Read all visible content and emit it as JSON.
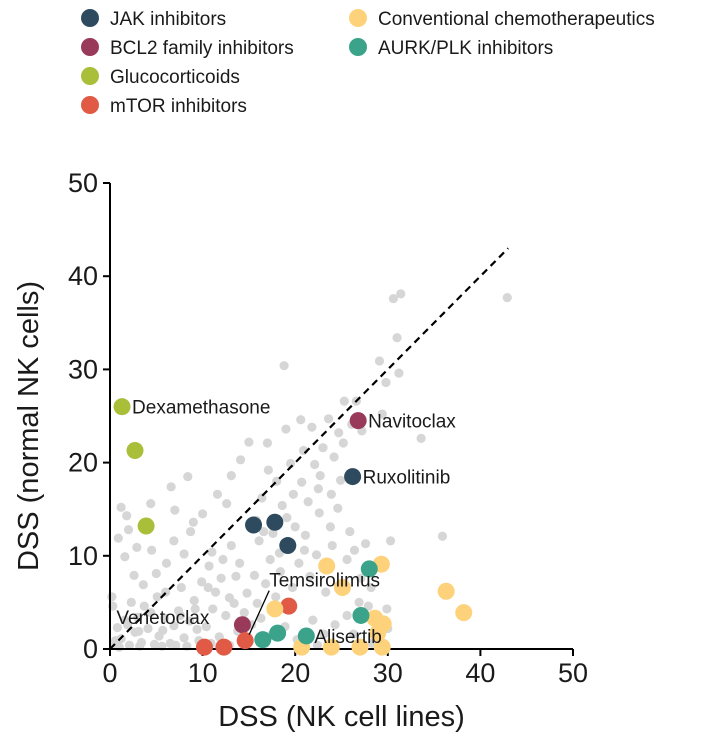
{
  "chart_data": {
    "type": "scatter",
    "xlabel": "DSS (NK cell lines)",
    "ylabel": "DSS (normal NK cells)",
    "xlim": [
      0,
      50
    ],
    "ylim": [
      0,
      50
    ],
    "xticks": [
      "0",
      "10",
      "20",
      "30",
      "40",
      "50"
    ],
    "yticks": [
      "0",
      "10",
      "20",
      "30",
      "40",
      "50"
    ],
    "grid": false,
    "legend_position": "top",
    "reference_line": {
      "style": "dashed",
      "from": [
        0,
        0
      ],
      "to": [
        43,
        43
      ]
    },
    "series": [
      {
        "name": "JAK inhibitors",
        "color": "#2e4a5e",
        "points": [
          [
            15.5,
            13.3
          ],
          [
            17.8,
            13.6
          ],
          [
            19.2,
            11.1
          ],
          [
            26.2,
            18.5
          ]
        ]
      },
      {
        "name": "BCL2 family inhibitors",
        "color": "#9a3a5a",
        "points": [
          [
            26.8,
            24.5
          ],
          [
            14.3,
            2.6
          ]
        ]
      },
      {
        "name": "Glucocorticoids",
        "color": "#a9bf3a",
        "points": [
          [
            1.3,
            26.0
          ],
          [
            2.7,
            21.3
          ],
          [
            3.9,
            13.2
          ]
        ]
      },
      {
        "name": "mTOR inhibitors",
        "color": "#e05a45",
        "points": [
          [
            14.6,
            0.9
          ],
          [
            19.3,
            4.6
          ],
          [
            10.2,
            0.2
          ],
          [
            12.3,
            0.2
          ]
        ]
      },
      {
        "name": "Conventional chemotherapeutics",
        "color": "#fdd27a",
        "points": [
          [
            23.4,
            8.9
          ],
          [
            25.1,
            6.6
          ],
          [
            29.3,
            9.1
          ],
          [
            17.8,
            4.3
          ],
          [
            28.6,
            3.3
          ],
          [
            29.5,
            2.7
          ],
          [
            28.9,
            1.7
          ],
          [
            36.3,
            6.2
          ],
          [
            38.2,
            3.9
          ],
          [
            20.7,
            0.2
          ],
          [
            23.9,
            0.2
          ],
          [
            27.0,
            0.2
          ],
          [
            29.4,
            0.2
          ]
        ]
      },
      {
        "name": "AURK/PLK inhibitors",
        "color": "#3aa38a",
        "points": [
          [
            28.0,
            8.6
          ],
          [
            27.1,
            3.6
          ],
          [
            16.5,
            1.0
          ],
          [
            18.1,
            1.7
          ],
          [
            21.2,
            1.4
          ]
        ]
      }
    ],
    "background_points_color": "#d6d6d6",
    "background_points": [
      [
        0.5,
        0.6
      ],
      [
        1.2,
        1.1
      ],
      [
        0.8,
        2.3
      ],
      [
        2.1,
        0.4
      ],
      [
        1.6,
        3.1
      ],
      [
        0.3,
        4.6
      ],
      [
        0.2,
        5.6
      ],
      [
        2.7,
        1.8
      ],
      [
        3.4,
        0.7
      ],
      [
        1.0,
        0.2
      ],
      [
        0.6,
        0.9
      ],
      [
        3.0,
        3.4
      ],
      [
        2.3,
        5.0
      ],
      [
        4.1,
        2.2
      ],
      [
        4.8,
        0.5
      ],
      [
        5.3,
        1.4
      ],
      [
        3.7,
        4.6
      ],
      [
        5.9,
        3.3
      ],
      [
        6.5,
        0.6
      ],
      [
        6.9,
        2.5
      ],
      [
        7.4,
        4.1
      ],
      [
        5.1,
        5.6
      ],
      [
        8.0,
        1.2
      ],
      [
        8.6,
        3.0
      ],
      [
        9.1,
        5.2
      ],
      [
        9.6,
        0.9
      ],
      [
        10.4,
        2.4
      ],
      [
        11.1,
        4.3
      ],
      [
        11.8,
        1.3
      ],
      [
        12.5,
        3.6
      ],
      [
        7.7,
        6.6
      ],
      [
        9.9,
        7.2
      ],
      [
        11.4,
        6.1
      ],
      [
        12.9,
        5.5
      ],
      [
        13.6,
        7.8
      ],
      [
        10.7,
        8.9
      ],
      [
        12.2,
        9.6
      ],
      [
        13.1,
        11.1
      ],
      [
        14.0,
        9.2
      ],
      [
        11.0,
        10.4
      ],
      [
        14.8,
        6.0
      ],
      [
        15.9,
        4.9
      ],
      [
        16.8,
        7.0
      ],
      [
        17.3,
        9.6
      ],
      [
        16.1,
        11.6
      ],
      [
        17.6,
        12.4
      ],
      [
        18.4,
        8.3
      ],
      [
        19.1,
        14.1
      ],
      [
        18.6,
        15.4
      ],
      [
        20.0,
        13.1
      ],
      [
        16.4,
        16.2
      ],
      [
        17.1,
        19.2
      ],
      [
        18.0,
        18.0
      ],
      [
        19.8,
        16.6
      ],
      [
        20.7,
        17.9
      ],
      [
        21.4,
        15.8
      ],
      [
        22.1,
        19.8
      ],
      [
        21.8,
        23.8
      ],
      [
        20.6,
        24.6
      ],
      [
        23.0,
        21.6
      ],
      [
        23.6,
        24.7
      ],
      [
        24.7,
        23.2
      ],
      [
        25.3,
        26.6
      ],
      [
        24.2,
        20.6
      ],
      [
        22.7,
        18.6
      ],
      [
        21.1,
        12.2
      ],
      [
        22.6,
        14.6
      ],
      [
        23.8,
        13.1
      ],
      [
        24.6,
        15.1
      ],
      [
        25.9,
        12.6
      ],
      [
        24.0,
        11.1
      ],
      [
        22.3,
        10.1
      ],
      [
        20.4,
        9.2
      ],
      [
        19.7,
        6.6
      ],
      [
        21.6,
        7.8
      ],
      [
        23.3,
        6.1
      ],
      [
        25.6,
        9.6
      ],
      [
        26.4,
        10.6
      ],
      [
        27.1,
        7.6
      ],
      [
        26.9,
        5.0
      ],
      [
        28.2,
        6.6
      ],
      [
        27.6,
        11.3
      ],
      [
        30.3,
        11.6
      ],
      [
        29.4,
        25.2
      ],
      [
        29.1,
        30.9
      ],
      [
        29.8,
        28.6
      ],
      [
        31.0,
        33.4
      ],
      [
        31.4,
        38.1
      ],
      [
        30.6,
        37.6
      ],
      [
        31.2,
        29.6
      ],
      [
        33.6,
        22.6
      ],
      [
        35.9,
        12.1
      ],
      [
        42.9,
        37.7
      ],
      [
        26.6,
        26.6
      ],
      [
        18.8,
        30.4
      ],
      [
        17.0,
        22.1
      ],
      [
        15.0,
        22.2
      ],
      [
        14.1,
        20.3
      ],
      [
        13.1,
        18.6
      ],
      [
        12.6,
        15.6
      ],
      [
        8.4,
        18.5
      ],
      [
        6.6,
        17.4
      ],
      [
        4.4,
        15.6
      ],
      [
        1.2,
        15.2
      ],
      [
        1.8,
        14.3
      ],
      [
        8.7,
        12.6
      ],
      [
        8.0,
        10.2
      ],
      [
        6.1,
        9.2
      ],
      [
        5.0,
        8.1
      ],
      [
        3.6,
        6.9
      ],
      [
        2.6,
        7.9
      ],
      [
        4.5,
        10.6
      ],
      [
        6.9,
        11.6
      ],
      [
        9.0,
        13.6
      ],
      [
        10.0,
        14.5
      ],
      [
        11.6,
        16.6
      ],
      [
        7.0,
        14.9
      ],
      [
        15.8,
        13.8
      ],
      [
        16.6,
        12.6
      ],
      [
        21.0,
        10.6
      ],
      [
        1.9,
        2.6
      ],
      [
        3.1,
        1.9
      ],
      [
        4.4,
        3.9
      ],
      [
        5.7,
        2.0
      ],
      [
        7.1,
        0.4
      ],
      [
        8.3,
        0.3
      ],
      [
        9.4,
        2.1
      ],
      [
        10.9,
        0.6
      ],
      [
        12.9,
        0.4
      ],
      [
        13.8,
        1.9
      ],
      [
        15.3,
        2.6
      ],
      [
        16.3,
        3.3
      ],
      [
        17.2,
        1.4
      ],
      [
        18.9,
        2.4
      ],
      [
        20.2,
        1.0
      ],
      [
        21.9,
        3.1
      ],
      [
        22.4,
        0.4
      ],
      [
        23.1,
        1.6
      ],
      [
        24.3,
        2.6
      ],
      [
        25.6,
        3.6
      ],
      [
        26.3,
        1.6
      ],
      [
        27.9,
        4.6
      ],
      [
        28.3,
        0.6
      ],
      [
        30.0,
        2.2
      ],
      [
        29.9,
        4.3
      ],
      [
        1.6,
        9.9
      ],
      [
        2.9,
        10.9
      ],
      [
        0.9,
        11.9
      ],
      [
        2.0,
        12.8
      ],
      [
        3.2,
        0.3
      ],
      [
        5.6,
        0.3
      ],
      [
        6.0,
        6.1
      ],
      [
        7.6,
        3.6
      ],
      [
        9.2,
        4.3
      ],
      [
        10.6,
        6.6
      ],
      [
        12.0,
        7.6
      ],
      [
        13.4,
        4.9
      ],
      [
        14.5,
        3.9
      ],
      [
        15.6,
        7.9
      ],
      [
        17.9,
        5.6
      ],
      [
        18.3,
        10.3
      ],
      [
        19.5,
        19.9
      ],
      [
        20.9,
        21.3
      ],
      [
        22.5,
        17.2
      ],
      [
        23.9,
        16.6
      ],
      [
        24.9,
        18.1
      ],
      [
        25.2,
        22.1
      ],
      [
        26.1,
        24.1
      ],
      [
        27.2,
        23.4
      ],
      [
        19.0,
        23.6
      ]
    ],
    "annotations": [
      {
        "text": "Dexamethasone",
        "x": 1.3,
        "y": 26.0,
        "side": "right"
      },
      {
        "text": "Navitoclax",
        "x": 26.8,
        "y": 24.5,
        "side": "right"
      },
      {
        "text": "Ruxolitinib",
        "x": 26.2,
        "y": 18.5,
        "side": "right"
      },
      {
        "text": "Temsirolimus",
        "x": 14.6,
        "y": 0.9,
        "side": "above-right",
        "leader": true
      },
      {
        "text": "Venetoclax",
        "x": 14.3,
        "y": 2.6,
        "side": "left"
      },
      {
        "text": "Alisertib",
        "x": 21.2,
        "y": 1.4,
        "side": "right"
      }
    ]
  }
}
